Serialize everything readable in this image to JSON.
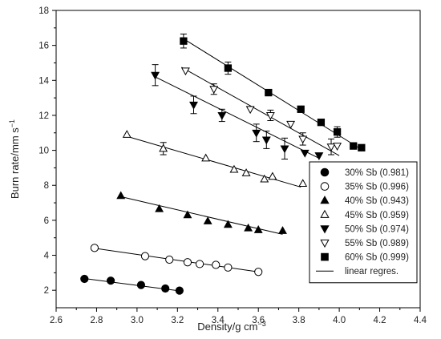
{
  "chart_data": {
    "type": "scatter",
    "xlabel_main": "Density/g cm",
    "xlabel_sup": "−3",
    "ylabel_main": "Burn rate/mm s",
    "ylabel_sup": "−1",
    "xlim": [
      2.6,
      4.4
    ],
    "ylim": [
      1,
      18
    ],
    "x_ticks": [
      2.6,
      2.8,
      3.0,
      3.2,
      3.4,
      3.6,
      3.8,
      4.0,
      4.2,
      4.4
    ],
    "x_tick_labels": [
      "2.6",
      "2.8",
      "3.0",
      "3.2",
      "3.4",
      "3.6",
      "3.8",
      "4.0",
      "4.2",
      "4.4"
    ],
    "y_ticks": [
      2,
      4,
      6,
      8,
      10,
      12,
      14,
      16,
      18
    ],
    "y_tick_labels": [
      "2",
      "4",
      "6",
      "8",
      "10",
      "12",
      "14",
      "16",
      "18"
    ],
    "grid": false,
    "legend_position": "bottom-right",
    "legend": [
      {
        "label": "30% Sb (0.981)",
        "marker": "circle-filled"
      },
      {
        "label": "35% Sb (0.996)",
        "marker": "circle-open"
      },
      {
        "label": "40% Sb (0.943)",
        "marker": "triangle-up-filled"
      },
      {
        "label": "45% Sb (0.959)",
        "marker": "triangle-up-open"
      },
      {
        "label": "50% Sb (0.974)",
        "marker": "triangle-down-filled"
      },
      {
        "label": "55% Sb (0.989)",
        "marker": "triangle-down-open"
      },
      {
        "label": "60% Sb (0.999)",
        "marker": "square-filled"
      },
      {
        "label": "linear regres.",
        "marker": "line"
      }
    ],
    "series": [
      {
        "marker": "circle-filled",
        "points": [
          [
            2.74,
            2.65
          ],
          [
            2.87,
            2.55
          ],
          [
            3.02,
            2.3
          ],
          [
            3.14,
            2.1
          ],
          [
            3.21,
            1.98
          ]
        ],
        "fit": [
          [
            2.72,
            2.7
          ],
          [
            3.22,
            1.95
          ]
        ]
      },
      {
        "marker": "circle-open",
        "points": [
          [
            2.79,
            4.42
          ],
          [
            3.04,
            3.95
          ],
          [
            3.16,
            3.75
          ],
          [
            3.25,
            3.6
          ],
          [
            3.31,
            3.5
          ],
          [
            3.39,
            3.45
          ],
          [
            3.45,
            3.3
          ],
          [
            3.6,
            3.05
          ]
        ],
        "fit": [
          [
            2.79,
            4.4
          ],
          [
            3.6,
            3.05
          ]
        ]
      },
      {
        "marker": "triangle-up-filled",
        "points": [
          [
            2.92,
            7.4
          ],
          [
            3.11,
            6.65
          ],
          [
            3.25,
            6.3
          ],
          [
            3.35,
            5.95
          ],
          [
            3.45,
            5.75
          ],
          [
            3.55,
            5.55
          ],
          [
            3.6,
            5.45
          ],
          [
            3.72,
            5.4
          ]
        ],
        "fit": [
          [
            2.92,
            7.35
          ],
          [
            3.72,
            5.2
          ]
        ]
      },
      {
        "marker": "triangle-up-open",
        "points": [
          [
            2.95,
            10.9
          ],
          [
            3.13,
            10.1
          ],
          [
            3.34,
            9.55
          ],
          [
            3.48,
            8.9
          ],
          [
            3.54,
            8.7
          ],
          [
            3.63,
            8.35
          ],
          [
            3.67,
            8.5
          ],
          [
            3.82,
            8.1
          ]
        ],
        "fit": [
          [
            2.95,
            10.8
          ],
          [
            3.81,
            7.9
          ]
        ],
        "errors": [
          [
            3.13,
            10.1,
            0.35
          ]
        ]
      },
      {
        "marker": "triangle-down-filled",
        "points": [
          [
            3.09,
            14.3
          ],
          [
            3.28,
            12.6
          ],
          [
            3.42,
            12.0
          ],
          [
            3.59,
            11.0
          ],
          [
            3.64,
            10.6
          ],
          [
            3.73,
            10.1
          ],
          [
            3.83,
            9.85
          ],
          [
            3.9,
            9.7
          ]
        ],
        "fit": [
          [
            3.09,
            14.2
          ],
          [
            3.9,
            9.55
          ]
        ],
        "errors": [
          [
            3.09,
            14.3,
            0.6
          ],
          [
            3.28,
            12.6,
            0.5
          ],
          [
            3.42,
            12.0,
            0.35
          ],
          [
            3.59,
            11.0,
            0.5
          ],
          [
            3.64,
            10.6,
            0.5
          ],
          [
            3.73,
            10.1,
            0.6
          ]
        ]
      },
      {
        "marker": "triangle-down-open",
        "points": [
          [
            3.24,
            14.55
          ],
          [
            3.38,
            13.5
          ],
          [
            3.56,
            12.35
          ],
          [
            3.66,
            12.0
          ],
          [
            3.76,
            11.5
          ],
          [
            3.82,
            10.65
          ],
          [
            3.96,
            10.2
          ],
          [
            3.99,
            10.25
          ]
        ],
        "fit": [
          [
            3.22,
            14.75
          ],
          [
            4.0,
            9.7
          ]
        ],
        "errors": [
          [
            3.38,
            13.5,
            0.3
          ],
          [
            3.66,
            12.0,
            0.3
          ],
          [
            3.82,
            10.65,
            0.35
          ],
          [
            3.96,
            10.2,
            0.45
          ]
        ]
      },
      {
        "marker": "square-filled",
        "points": [
          [
            3.23,
            16.25
          ],
          [
            3.45,
            14.7
          ],
          [
            3.65,
            13.3
          ],
          [
            3.81,
            12.35
          ],
          [
            3.91,
            11.6
          ],
          [
            3.99,
            11.05
          ],
          [
            4.07,
            10.25
          ],
          [
            4.11,
            10.15
          ]
        ],
        "fit": [
          [
            3.22,
            16.45
          ],
          [
            4.11,
            10.05
          ]
        ],
        "errors": [
          [
            3.23,
            16.25,
            0.4
          ],
          [
            3.45,
            14.7,
            0.35
          ],
          [
            3.99,
            11.05,
            0.3
          ]
        ]
      }
    ]
  }
}
